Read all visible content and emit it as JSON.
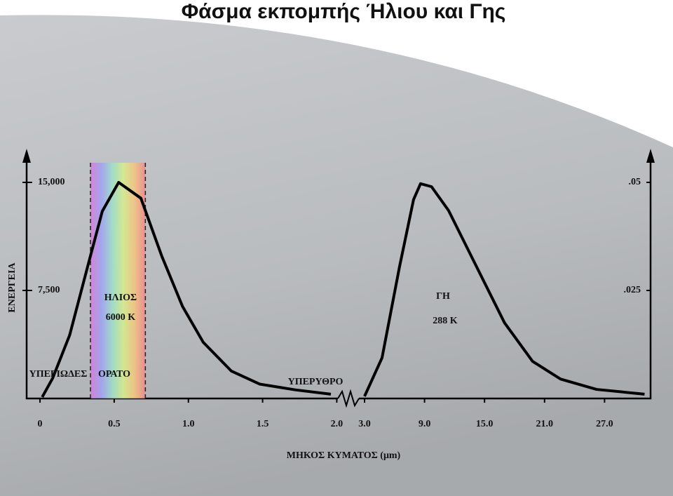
{
  "chart_data": [
    {
      "type": "line",
      "title": "Φάσμα εκπομπής Ήλιου και Γης",
      "ylabel": "ΕΝΕΡΓΕΙΑ",
      "xlabel": "ΜΗΚΟΣ ΚΥΜΑΤΟΣ (μm)",
      "x": [
        0.015,
        0.085,
        0.2,
        0.34,
        0.42,
        0.53,
        0.68,
        0.82,
        0.96,
        1.1,
        1.29,
        1.48,
        1.72,
        1.96
      ],
      "series": [
        {
          "name": "ΗΛΙΟΣ",
          "color": "#000000",
          "values": [
            100,
            1400,
            4400,
            9900,
            13000,
            15000,
            13900,
            9900,
            6400,
            3900,
            1900,
            1000,
            600,
            300
          ]
        }
      ],
      "visible_band": [
        0.34,
        0.71
      ],
      "xlim": [
        -0.09,
        2.05
      ],
      "ylim": [
        0,
        17190
      ],
      "xticks": [
        0,
        0.5,
        {
          "value": 1,
          "label": "1.0"
        },
        1.5,
        {
          "value": 2,
          "label": "2.0"
        }
      ],
      "yticks": [
        {
          "value": 7500,
          "label": "7,500"
        },
        {
          "value": 15000,
          "label": "15,000"
        }
      ],
      "annotations": [
        "ΗΛΙΟΣ",
        "6000 K",
        "ΥΠΕΡΙΩΔΕΣ",
        "ΟΡΑΤΟ",
        "ΥΠΕΡΥΘΡΟ"
      ]
    },
    {
      "type": "line",
      "x": [
        3,
        4.75,
        6.5,
        7.9,
        8.6,
        9.7,
        11.4,
        14.2,
        17,
        19.8,
        22.6,
        26.2,
        31
      ],
      "series": [
        {
          "name": "ΓΗ",
          "color": "#000000",
          "values": [
            0.0005,
            0.0094,
            0.0305,
            0.046,
            0.0497,
            0.049,
            0.0435,
            0.0305,
            0.0175,
            0.0086,
            0.0045,
            0.0021,
            0.001
          ]
        }
      ],
      "xlim": [
        2.3,
        31.6
      ],
      "ylim": [
        0,
        0.0573
      ],
      "xticks": [
        {
          "value": 3,
          "label": "3.0"
        },
        {
          "value": 9,
          "label": "9.0"
        },
        {
          "value": 15,
          "label": "15.0"
        },
        {
          "value": 21,
          "label": "21.0"
        },
        {
          "value": 27,
          "label": "27.0"
        }
      ],
      "yticks": [
        {
          "value": 0.025,
          "label": ".025"
        },
        {
          "value": 0.05,
          "label": ".05"
        }
      ],
      "annotations": [
        "ΓΗ",
        "288 K"
      ]
    }
  ]
}
